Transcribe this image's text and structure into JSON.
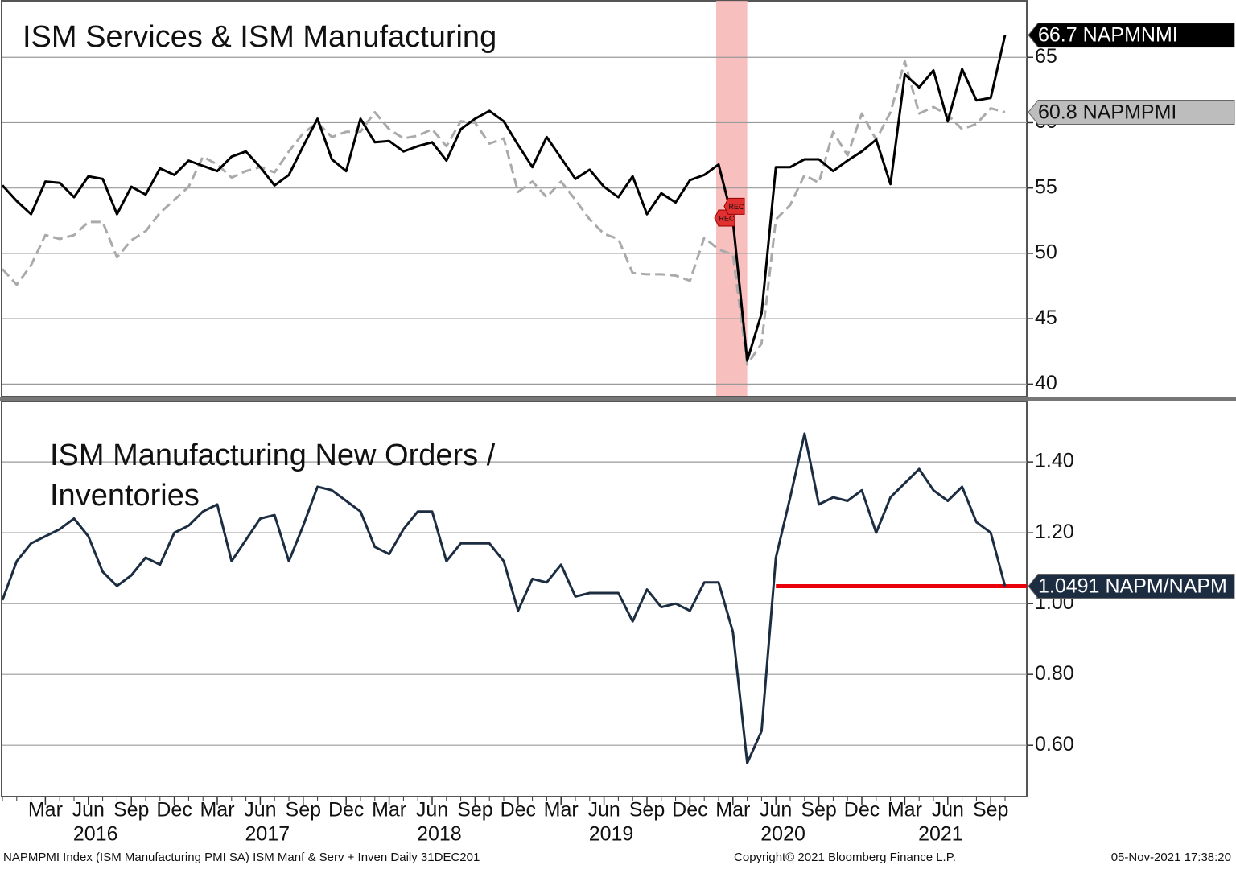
{
  "chart_data": [
    {
      "type": "line",
      "title": "ISM Services & ISM Manufacturing",
      "x": [
        "2015-12",
        "2016-01",
        "2016-02",
        "2016-03",
        "2016-04",
        "2016-05",
        "2016-06",
        "2016-07",
        "2016-08",
        "2016-09",
        "2016-10",
        "2016-11",
        "2016-12",
        "2017-01",
        "2017-02",
        "2017-03",
        "2017-04",
        "2017-05",
        "2017-06",
        "2017-07",
        "2017-08",
        "2017-09",
        "2017-10",
        "2017-11",
        "2017-12",
        "2018-01",
        "2018-02",
        "2018-03",
        "2018-04",
        "2018-05",
        "2018-06",
        "2018-07",
        "2018-08",
        "2018-09",
        "2018-10",
        "2018-11",
        "2018-12",
        "2019-01",
        "2019-02",
        "2019-03",
        "2019-04",
        "2019-05",
        "2019-06",
        "2019-07",
        "2019-08",
        "2019-09",
        "2019-10",
        "2019-11",
        "2019-12",
        "2020-01",
        "2020-02",
        "2020-03",
        "2020-04",
        "2020-05",
        "2020-06",
        "2020-07",
        "2020-08",
        "2020-09",
        "2020-10",
        "2020-11",
        "2020-12",
        "2021-01",
        "2021-02",
        "2021-03",
        "2021-04",
        "2021-05",
        "2021-06",
        "2021-07",
        "2021-08",
        "2021-09",
        "2021-10"
      ],
      "series": [
        {
          "name": "NAPMNMI",
          "color": "#000000",
          "dash": false,
          "values": [
            55.2,
            54.0,
            53.0,
            55.5,
            55.4,
            54.3,
            55.9,
            55.7,
            53.0,
            55.1,
            54.5,
            56.5,
            56.0,
            57.1,
            56.7,
            56.3,
            57.4,
            57.8,
            56.6,
            55.2,
            56.0,
            58.2,
            60.3,
            57.2,
            56.3,
            60.3,
            58.5,
            58.6,
            57.8,
            58.2,
            58.5,
            57.1,
            59.5,
            60.3,
            60.9,
            60.1,
            58.3,
            56.6,
            58.9,
            57.3,
            55.7,
            56.4,
            55.1,
            54.3,
            55.9,
            53.0,
            54.6,
            53.9,
            55.6,
            56.0,
            56.8,
            52.5,
            41.8,
            45.4,
            56.6,
            56.6,
            57.2,
            57.2,
            56.3,
            57.1,
            57.8,
            58.7,
            55.3,
            63.7,
            62.7,
            64.0,
            60.1,
            64.1,
            61.7,
            61.9,
            66.7
          ]
        },
        {
          "name": "NAPMPMI",
          "color": "#aaaaaa",
          "dash": true,
          "values": [
            48.8,
            47.6,
            49.1,
            51.4,
            51.1,
            51.4,
            52.4,
            52.4,
            49.7,
            51.0,
            51.7,
            53.1,
            54.1,
            55.1,
            57.4,
            56.8,
            55.8,
            56.3,
            56.6,
            56.2,
            57.8,
            59.2,
            60.0,
            58.9,
            59.3,
            59.3,
            60.8,
            59.5,
            58.8,
            59.0,
            59.5,
            58.2,
            60.1,
            60.0,
            58.4,
            58.8,
            54.7,
            55.5,
            54.3,
            55.5,
            54.1,
            52.6,
            51.5,
            51.1,
            48.5,
            48.4,
            48.4,
            48.3,
            47.9,
            51.2,
            50.3,
            49.9,
            41.5,
            43.1,
            52.6,
            53.7,
            56.0,
            55.4,
            59.3,
            57.5,
            60.7,
            58.7,
            60.8,
            64.7,
            60.7,
            61.2,
            60.6,
            59.5,
            59.9,
            61.1,
            60.8
          ]
        }
      ],
      "ylim": [
        39.1,
        69.2
      ],
      "yticks": [
        40,
        45,
        50,
        55,
        60,
        65
      ],
      "grid": true,
      "recessions": [
        {
          "start": "2020-02",
          "end": "2020-04",
          "label": "REC"
        }
      ]
    },
    {
      "type": "line",
      "title": [
        "ISM Manufacturing New Orders /",
        "Inventories"
      ],
      "x": [
        "2015-12",
        "2016-01",
        "2016-02",
        "2016-03",
        "2016-04",
        "2016-05",
        "2016-06",
        "2016-07",
        "2016-08",
        "2016-09",
        "2016-10",
        "2016-11",
        "2016-12",
        "2017-01",
        "2017-02",
        "2017-03",
        "2017-04",
        "2017-05",
        "2017-06",
        "2017-07",
        "2017-08",
        "2017-09",
        "2017-10",
        "2017-11",
        "2017-12",
        "2018-01",
        "2018-02",
        "2018-03",
        "2018-04",
        "2018-05",
        "2018-06",
        "2018-07",
        "2018-08",
        "2018-09",
        "2018-10",
        "2018-11",
        "2018-12",
        "2019-01",
        "2019-02",
        "2019-03",
        "2019-04",
        "2019-05",
        "2019-06",
        "2019-07",
        "2019-08",
        "2019-09",
        "2019-10",
        "2019-11",
        "2019-12",
        "2020-01",
        "2020-02",
        "2020-03",
        "2020-04",
        "2020-05",
        "2020-06",
        "2020-07",
        "2020-08",
        "2020-09",
        "2020-10",
        "2020-11",
        "2020-12",
        "2021-01",
        "2021-02",
        "2021-03",
        "2021-04",
        "2021-05",
        "2021-06",
        "2021-07",
        "2021-08",
        "2021-09",
        "2021-10"
      ],
      "series": [
        {
          "name": "NAPM/NAPM",
          "color": "#1c2d42",
          "dash": false,
          "values": [
            1.01,
            1.12,
            1.17,
            1.19,
            1.21,
            1.24,
            1.19,
            1.09,
            1.05,
            1.08,
            1.13,
            1.11,
            1.2,
            1.22,
            1.26,
            1.28,
            1.12,
            1.18,
            1.24,
            1.25,
            1.12,
            1.22,
            1.33,
            1.32,
            1.29,
            1.26,
            1.16,
            1.14,
            1.21,
            1.26,
            1.26,
            1.12,
            1.17,
            1.17,
            1.17,
            1.12,
            0.98,
            1.07,
            1.06,
            1.11,
            1.02,
            1.03,
            1.03,
            1.03,
            0.95,
            1.04,
            0.99,
            1.0,
            0.98,
            1.06,
            1.06,
            0.92,
            0.55,
            0.64,
            1.13,
            1.3,
            1.48,
            1.28,
            1.3,
            1.29,
            1.32,
            1.2,
            1.3,
            1.34,
            1.38,
            1.32,
            1.29,
            1.33,
            1.23,
            1.2,
            1.0491
          ]
        }
      ],
      "reference_line": {
        "color": "#e8000b",
        "from": "2020-06"
      },
      "ylim": [
        0.455,
        1.573
      ],
      "yticks": [
        {
          "value": 0.6,
          "label": "0.60"
        },
        {
          "value": 0.8,
          "label": "0.80"
        },
        {
          "value": 1.0,
          "label": "1.00"
        },
        {
          "value": 1.2,
          "label": "1.20"
        },
        {
          "value": 1.4,
          "label": "1.40"
        }
      ],
      "grid": true,
      "xticks": [
        {
          "value": "2016-03",
          "label": "Mar"
        },
        {
          "value": "2016-06",
          "label": "Jun"
        },
        {
          "value": "2016-09",
          "label": "Sep"
        },
        {
          "value": "2016-12",
          "label": "Dec"
        },
        {
          "value": "2017-03",
          "label": "Mar"
        },
        {
          "value": "2017-06",
          "label": "Jun"
        },
        {
          "value": "2017-09",
          "label": "Sep"
        },
        {
          "value": "2017-12",
          "label": "Dec"
        },
        {
          "value": "2018-03",
          "label": "Mar"
        },
        {
          "value": "2018-06",
          "label": "Jun"
        },
        {
          "value": "2018-09",
          "label": "Sep"
        },
        {
          "value": "2018-12",
          "label": "Dec"
        },
        {
          "value": "2019-03",
          "label": "Mar"
        },
        {
          "value": "2019-06",
          "label": "Jun"
        },
        {
          "value": "2019-09",
          "label": "Sep"
        },
        {
          "value": "2019-12",
          "label": "Dec"
        },
        {
          "value": "2020-03",
          "label": "Mar"
        },
        {
          "value": "2020-06",
          "label": "Jun"
        },
        {
          "value": "2020-09",
          "label": "Sep"
        },
        {
          "value": "2020-12",
          "label": "Dec"
        },
        {
          "value": "2021-03",
          "label": "Mar"
        },
        {
          "value": "2021-06",
          "label": "Jun"
        },
        {
          "value": "2021-09",
          "label": "Sep"
        }
      ],
      "years": [
        2016,
        2017,
        2018,
        2019,
        2020,
        2021
      ]
    }
  ],
  "footer": {
    "left": "NAPMPMI Index (ISM Manufacturing PMI SA) ISM Manf & Serv + Inven  Daily 31DEC201",
    "center": "Copyright© 2021 Bloomberg Finance L.P.",
    "right": "05-Nov-2021 17:38:20"
  }
}
